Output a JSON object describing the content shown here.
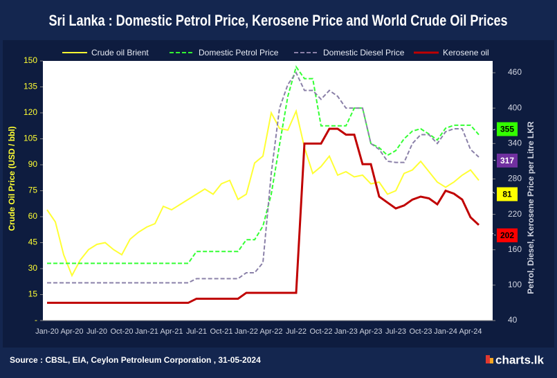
{
  "chart_data": {
    "type": "line",
    "title": "Sri Lanka : Domestic Petrol Price, Kerosene Price and World Crude Oil Prices",
    "source": "Source : CBSL, EIA, Ceylon Petroleum Corporation , 31-05-2024",
    "logo": "charts.lk",
    "y_label": "Crude Oil  Price (USD / bbl)",
    "y2_label": "Petrol, Diesel, Kerosene Price per Litre LKR",
    "categories": [
      "Jan-20",
      null,
      null,
      "Apr-20",
      null,
      null,
      "Jul-20",
      null,
      null,
      "Oct-20",
      null,
      null,
      "Jan-21",
      null,
      null,
      "Apr-21",
      null,
      null,
      "Jul-21",
      null,
      null,
      "Oct-21",
      null,
      null,
      "Jan-22",
      null,
      null,
      "Apr-22",
      null,
      null,
      "Jul-22",
      null,
      null,
      "Oct-22",
      null,
      null,
      "Jan-23",
      null,
      null,
      "Apr-23",
      null,
      null,
      "Jul-23",
      null,
      null,
      "Oct-23",
      null,
      null,
      "Jan-24",
      null,
      null,
      "Apr-24",
      null
    ],
    "ylim": [
      0,
      150
    ],
    "yticks": [
      {
        "value": 0,
        "label": "-"
      },
      15,
      30,
      45,
      60,
      75,
      90,
      105,
      120,
      135,
      150
    ],
    "y2lim": [
      40,
      480
    ],
    "y2ticks": [
      40,
      100,
      160,
      220,
      280,
      340,
      400,
      460
    ],
    "series": [
      {
        "name": "Crude oil Brient",
        "color": "#ffff33",
        "line_style": "solid",
        "label_color": "#ffff00",
        "axis": "y",
        "values": [
          64,
          57,
          38,
          26,
          35,
          41,
          44,
          45,
          41,
          38,
          47,
          51,
          54,
          56,
          66,
          64,
          67,
          70,
          73,
          76,
          73,
          79,
          81,
          70,
          73,
          91,
          95,
          120,
          111,
          110,
          121,
          100,
          85,
          89,
          95,
          84,
          86,
          83,
          84,
          79,
          80,
          73,
          75,
          85,
          87,
          92,
          86,
          80,
          77,
          80,
          84,
          87,
          81
        ]
      },
      {
        "name": "Domestic Petrol Price",
        "color": "#33ff33",
        "line_style": "dashed",
        "label_color": "#33ff00",
        "axis": "y2",
        "values": [
          137,
          137,
          137,
          137,
          137,
          137,
          137,
          137,
          137,
          137,
          137,
          137,
          137,
          137,
          137,
          137,
          137,
          137,
          157,
          157,
          157,
          157,
          157,
          157,
          177,
          177,
          200,
          254,
          338,
          420,
          470,
          450,
          450,
          370,
          370,
          370,
          370,
          400,
          400,
          340,
          333,
          320,
          328,
          348,
          361,
          365,
          356,
          346,
          366,
          371,
          371,
          371,
          355
        ]
      },
      {
        "name": "Domestic Diesel Price",
        "color": "#8a80a8",
        "line_style": "dashed",
        "label_color": "#7030a0",
        "axis": "y2",
        "values": [
          104,
          104,
          104,
          104,
          104,
          104,
          104,
          104,
          104,
          104,
          104,
          104,
          104,
          104,
          104,
          104,
          104,
          104,
          111,
          111,
          111,
          111,
          111,
          111,
          121,
          121,
          138,
          289,
          400,
          440,
          460,
          430,
          430,
          415,
          430,
          420,
          400,
          400,
          400,
          340,
          330,
          310,
          308,
          308,
          340,
          355,
          355,
          340,
          360,
          365,
          365,
          330,
          317
        ]
      },
      {
        "name": "Kerosene oil",
        "color": "#c00000",
        "line_style": "solid",
        "label_color": "#ff0000",
        "axis": "y2",
        "values": [
          70,
          70,
          70,
          70,
          70,
          70,
          70,
          70,
          70,
          70,
          70,
          70,
          70,
          70,
          70,
          70,
          70,
          70,
          77,
          77,
          77,
          77,
          77,
          77,
          87,
          87,
          87,
          87,
          87,
          87,
          87,
          340,
          340,
          340,
          365,
          365,
          355,
          355,
          305,
          305,
          250,
          240,
          230,
          235,
          245,
          250,
          247,
          237,
          260,
          255,
          245,
          215,
          202
        ]
      }
    ]
  }
}
